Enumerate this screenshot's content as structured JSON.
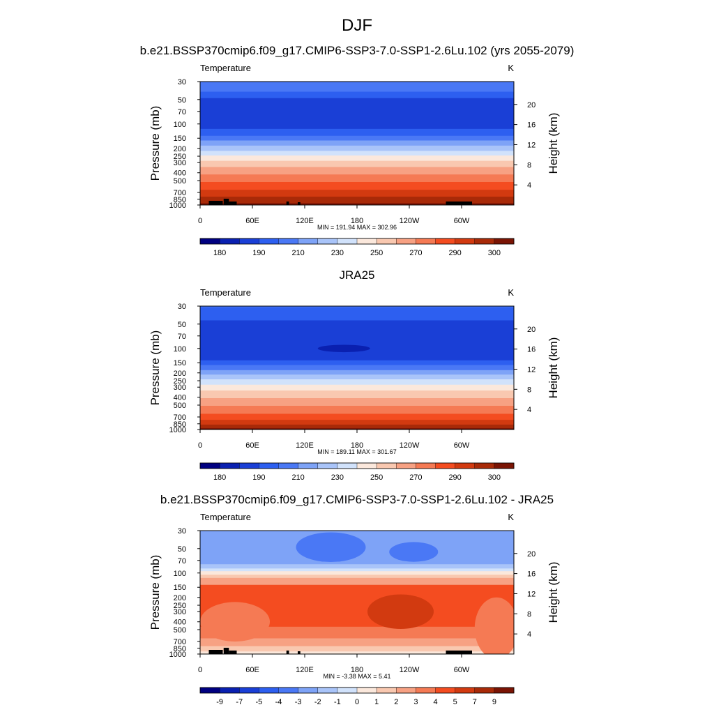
{
  "figure": {
    "season": "DJF",
    "colors": {
      "land": "#000000"
    }
  },
  "chart_data": [
    {
      "type": "heatmap",
      "title": "b.e21.BSSP370cmip6.f09_g17.CMIP6-SSP3-7.0-SSP1-2.6Lu.102 (yrs 2055-2079)",
      "left_label": "Temperature",
      "units": "K",
      "ylabel": "Pressure (mb)",
      "y2label": "Height (km)",
      "pressure_ticks": [
        30,
        50,
        70,
        100,
        150,
        200,
        250,
        300,
        400,
        500,
        700,
        850,
        1000
      ],
      "height_ticks": [
        20,
        16,
        12,
        8,
        4
      ],
      "x_ticks": [
        "0",
        "60E",
        "120E",
        "180",
        "120W",
        "60W"
      ],
      "stats": "MIN = 191.94  MAX = 302.96",
      "colorbar": {
        "labels": [
          "180",
          "190",
          "210",
          "230",
          "250",
          "270",
          "290",
          "300"
        ],
        "colors": [
          "#000080",
          "#0a20b0",
          "#1a3fd6",
          "#2d5ff0",
          "#4a78f5",
          "#7ea3f7",
          "#a9c4f9",
          "#d1e2fb",
          "#fbe8dc",
          "#f9c8b0",
          "#f7a183",
          "#f57a54",
          "#f44c20",
          "#d23a10",
          "#a82a08",
          "#7a1404"
        ]
      },
      "bands": [
        {
          "p": 28,
          "v": 6
        },
        {
          "p": 40,
          "v": 4
        },
        {
          "p": 48,
          "v": 3
        },
        {
          "p": 115,
          "v": 2
        },
        {
          "p": 140,
          "v": 3
        },
        {
          "p": 160,
          "v": 4
        },
        {
          "p": 185,
          "v": 5
        },
        {
          "p": 215,
          "v": 6
        },
        {
          "p": 245,
          "v": 7
        },
        {
          "p": 285,
          "v": 8
        },
        {
          "p": 340,
          "v": 9
        },
        {
          "p": 420,
          "v": 10
        },
        {
          "p": 520,
          "v": 11
        },
        {
          "p": 650,
          "v": 12
        },
        {
          "p": 790,
          "v": 13
        },
        {
          "p": 950,
          "v": 14
        },
        {
          "p": 1000,
          "v": 15
        }
      ],
      "blobs": [],
      "show_land": true
    },
    {
      "type": "heatmap",
      "title": "JRA25",
      "left_label": "Temperature",
      "units": "K",
      "ylabel": "Pressure (mb)",
      "y2label": "Height (km)",
      "pressure_ticks": [
        30,
        50,
        70,
        100,
        150,
        200,
        250,
        300,
        400,
        500,
        700,
        850,
        1000
      ],
      "height_ticks": [
        20,
        16,
        12,
        8,
        4
      ],
      "x_ticks": [
        "0",
        "60E",
        "120E",
        "180",
        "120W",
        "60W"
      ],
      "stats": "MIN = 189.11  MAX = 301.67",
      "colorbar": {
        "labels": [
          "180",
          "190",
          "210",
          "230",
          "250",
          "270",
          "290",
          "300"
        ],
        "colors": [
          "#000080",
          "#0a20b0",
          "#1a3fd6",
          "#2d5ff0",
          "#4a78f5",
          "#7ea3f7",
          "#a9c4f9",
          "#d1e2fb",
          "#fbe8dc",
          "#f9c8b0",
          "#f7a183",
          "#f57a54",
          "#f44c20",
          "#d23a10",
          "#a82a08",
          "#7a1404"
        ]
      },
      "bands": [
        {
          "p": 31,
          "v": 4
        },
        {
          "p": 45,
          "v": 3
        },
        {
          "p": 140,
          "v": 2
        },
        {
          "p": 160,
          "v": 3
        },
        {
          "p": 185,
          "v": 4
        },
        {
          "p": 210,
          "v": 5
        },
        {
          "p": 240,
          "v": 6
        },
        {
          "p": 280,
          "v": 7
        },
        {
          "p": 330,
          "v": 8
        },
        {
          "p": 410,
          "v": 9
        },
        {
          "p": 510,
          "v": 10
        },
        {
          "p": 640,
          "v": 11
        },
        {
          "p": 760,
          "v": 12
        },
        {
          "p": 870,
          "v": 13
        },
        {
          "p": 960,
          "v": 14
        },
        {
          "p": 1000,
          "v": 15
        }
      ],
      "blobs": [
        {
          "lon": 165,
          "p": 100,
          "dlon": 30,
          "dp": 0.03,
          "v": 1
        }
      ],
      "show_land": false
    },
    {
      "type": "heatmap",
      "title": "b.e21.BSSP370cmip6.f09_g17.CMIP6-SSP3-7.0-SSP1-2.6Lu.102 - JRA25",
      "left_label": "Temperature",
      "units": "K",
      "ylabel": "Pressure (mb)",
      "y2label": "Height (km)",
      "pressure_ticks": [
        30,
        50,
        70,
        100,
        150,
        200,
        250,
        300,
        400,
        500,
        700,
        850,
        1000
      ],
      "height_ticks": [
        20,
        16,
        12,
        8,
        4
      ],
      "x_ticks": [
        "0",
        "60E",
        "120E",
        "180",
        "120W",
        "60W"
      ],
      "stats": "MIN =  -3.38  MAX =   5.41",
      "colorbar": {
        "labels": [
          "-9",
          "-7",
          "-5",
          "-4",
          "-3",
          "-2",
          "-1",
          "0",
          "1",
          "2",
          "3",
          "4",
          "5",
          "7",
          "9"
        ],
        "colors": [
          "#000080",
          "#0a20b0",
          "#1a3fd6",
          "#2d5ff0",
          "#4a78f5",
          "#7ea3f7",
          "#a9c4f9",
          "#d1e2fb",
          "#fbe8dc",
          "#f9c8b0",
          "#f7a183",
          "#f57a54",
          "#f44c20",
          "#d23a10",
          "#a82a08",
          "#7a1404"
        ]
      },
      "bands": [
        {
          "p": 78,
          "v": 5
        },
        {
          "p": 88,
          "v": 6
        },
        {
          "p": 95,
          "v": 7
        },
        {
          "p": 105,
          "v": 8
        },
        {
          "p": 115,
          "v": 9
        },
        {
          "p": 140,
          "v": 10
        },
        {
          "p": 460,
          "v": 12
        },
        {
          "p": 640,
          "v": 11
        },
        {
          "p": 800,
          "v": 10
        },
        {
          "p": 930,
          "v": 9
        },
        {
          "p": 1000,
          "v": 8
        }
      ],
      "blobs": [
        {
          "lon": 150,
          "p": 48,
          "dlon": 40,
          "dp": 0.12,
          "v": 4
        },
        {
          "lon": 245,
          "p": 55,
          "dlon": 28,
          "dp": 0.08,
          "v": 4
        },
        {
          "lon": 230,
          "p": 300,
          "dlon": 38,
          "dp": 0.14,
          "v": 13
        },
        {
          "lon": 40,
          "p": 400,
          "dlon": 40,
          "dp": 0.16,
          "v": 11
        },
        {
          "lon": 340,
          "p": 480,
          "dlon": 25,
          "dp": 0.25,
          "v": 11
        }
      ],
      "show_land": true
    }
  ]
}
